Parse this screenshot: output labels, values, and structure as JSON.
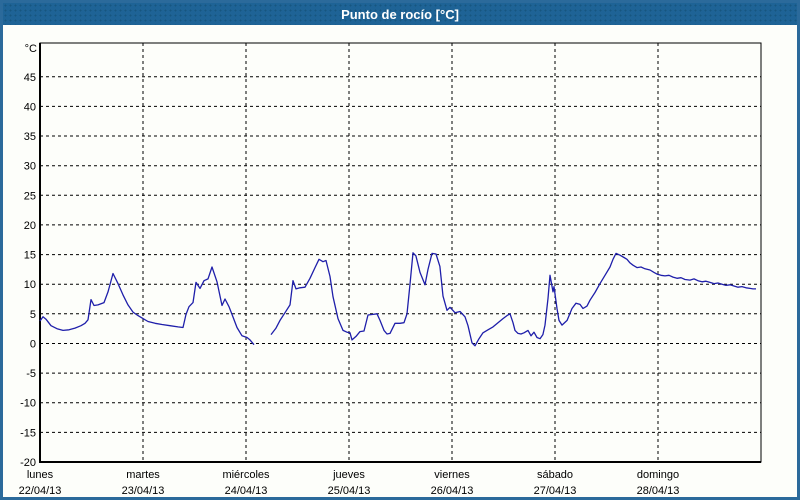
{
  "window": {
    "title": "Punto de rocío [°C]"
  },
  "colors": {
    "titlebar_bg": "#1E6396",
    "frame_border": "#2B6A9B",
    "panel_bg": "#FDFEFA",
    "series_line": "#1F1FAA",
    "grid": "#000000",
    "title_text": "#FFFFFF"
  },
  "chart_data": {
    "type": "line",
    "title": "Punto de rocío [°C]",
    "y_axis": {
      "unit_label": "°C",
      "min": -20,
      "max": 50.7,
      "tick_step": 5,
      "dashed_ticks": [
        45,
        40,
        35,
        30,
        25,
        20,
        15,
        10,
        5,
        0,
        -5,
        -10,
        -15
      ],
      "axis_tick": -20
    },
    "x_axis": {
      "days": [
        {
          "name": "lunes",
          "date": "22/04/13"
        },
        {
          "name": "martes",
          "date": "23/04/13"
        },
        {
          "name": "miércoles",
          "date": "24/04/13"
        },
        {
          "name": "jueves",
          "date": "25/04/13"
        },
        {
          "name": "viernes",
          "date": "26/04/13"
        },
        {
          "name": "sábado",
          "date": "27/04/13"
        },
        {
          "name": "domingo",
          "date": "28/04/13"
        }
      ]
    },
    "grid": "dashed",
    "legend": "none",
    "series": [
      {
        "name": "Punto de rocío",
        "color": "#1F1FAA",
        "unit": "°C",
        "note": "t in days from 22/04/13 00:00; gap in data early on 24/04",
        "segments": [
          [
            [
              0.0,
              3.8
            ],
            [
              0.029,
              4.5
            ],
            [
              0.058,
              4.1
            ],
            [
              0.107,
              3.0
            ],
            [
              0.165,
              2.5
            ],
            [
              0.223,
              2.2
            ],
            [
              0.282,
              2.3
            ],
            [
              0.34,
              2.6
            ],
            [
              0.398,
              3.0
            ],
            [
              0.437,
              3.4
            ],
            [
              0.466,
              4.0
            ],
            [
              0.495,
              7.4
            ],
            [
              0.524,
              6.4
            ],
            [
              0.563,
              6.5
            ],
            [
              0.621,
              6.9
            ],
            [
              0.66,
              8.7
            ],
            [
              0.709,
              11.8
            ],
            [
              0.757,
              10.1
            ],
            [
              0.806,
              8.2
            ],
            [
              0.854,
              6.5
            ],
            [
              0.903,
              5.3
            ],
            [
              0.951,
              4.7
            ],
            [
              1.0,
              4.2
            ],
            [
              1.049,
              3.7
            ],
            [
              1.117,
              3.4
            ],
            [
              1.184,
              3.2
            ],
            [
              1.262,
              3.0
            ],
            [
              1.34,
              2.8
            ],
            [
              1.388,
              2.7
            ],
            [
              1.417,
              4.9
            ],
            [
              1.447,
              6.2
            ],
            [
              1.485,
              6.9
            ],
            [
              1.515,
              10.3
            ],
            [
              1.553,
              9.3
            ],
            [
              1.592,
              10.6
            ],
            [
              1.631,
              10.9
            ],
            [
              1.67,
              12.9
            ],
            [
              1.718,
              10.4
            ],
            [
              1.767,
              6.4
            ],
            [
              1.796,
              7.5
            ],
            [
              1.835,
              6.2
            ],
            [
              1.864,
              4.9
            ],
            [
              1.913,
              2.7
            ],
            [
              1.961,
              1.3
            ],
            [
              2.01,
              1.0
            ],
            [
              2.039,
              0.6
            ],
            [
              2.078,
              -0.2
            ]
          ],
          [
            [
              2.243,
              1.5
            ],
            [
              2.291,
              2.6
            ],
            [
              2.33,
              3.9
            ],
            [
              2.379,
              5.2
            ],
            [
              2.427,
              6.5
            ],
            [
              2.456,
              10.6
            ],
            [
              2.485,
              9.2
            ],
            [
              2.524,
              9.4
            ],
            [
              2.573,
              9.5
            ],
            [
              2.621,
              11.0
            ],
            [
              2.67,
              12.8
            ],
            [
              2.709,
              14.2
            ],
            [
              2.748,
              13.8
            ],
            [
              2.777,
              14.0
            ],
            [
              2.816,
              11.3
            ],
            [
              2.845,
              7.9
            ],
            [
              2.893,
              4.2
            ],
            [
              2.942,
              2.2
            ],
            [
              2.981,
              1.9
            ],
            [
              3.01,
              1.8
            ],
            [
              3.029,
              0.6
            ],
            [
              3.068,
              1.2
            ],
            [
              3.107,
              2.0
            ],
            [
              3.146,
              2.1
            ],
            [
              3.184,
              4.8
            ],
            [
              3.233,
              4.9
            ],
            [
              3.272,
              5.0
            ],
            [
              3.301,
              3.9
            ],
            [
              3.34,
              2.2
            ],
            [
              3.369,
              1.6
            ],
            [
              3.398,
              1.7
            ],
            [
              3.447,
              3.4
            ],
            [
              3.495,
              3.4
            ],
            [
              3.534,
              3.5
            ],
            [
              3.563,
              5.0
            ],
            [
              3.592,
              10.0
            ],
            [
              3.621,
              15.3
            ],
            [
              3.65,
              14.8
            ],
            [
              3.689,
              12.0
            ],
            [
              3.738,
              9.9
            ],
            [
              3.767,
              12.5
            ],
            [
              3.806,
              15.2
            ],
            [
              3.845,
              15.1
            ],
            [
              3.883,
              13.0
            ],
            [
              3.913,
              8.0
            ],
            [
              3.951,
              5.6
            ],
            [
              3.981,
              6.1
            ],
            [
              4.029,
              5.2
            ],
            [
              4.078,
              5.4
            ],
            [
              4.126,
              4.5
            ],
            [
              4.155,
              3.0
            ],
            [
              4.194,
              0.1
            ],
            [
              4.223,
              -0.4
            ],
            [
              4.262,
              0.8
            ],
            [
              4.301,
              1.8
            ],
            [
              4.35,
              2.3
            ],
            [
              4.398,
              2.8
            ],
            [
              4.447,
              3.5
            ],
            [
              4.495,
              4.2
            ],
            [
              4.534,
              4.7
            ],
            [
              4.563,
              5.0
            ],
            [
              4.592,
              3.5
            ],
            [
              4.612,
              2.2
            ],
            [
              4.641,
              1.7
            ],
            [
              4.67,
              1.6
            ],
            [
              4.699,
              1.8
            ],
            [
              4.738,
              2.2
            ],
            [
              4.767,
              1.3
            ],
            [
              4.796,
              1.9
            ],
            [
              4.825,
              1.0
            ],
            [
              4.854,
              0.8
            ],
            [
              4.883,
              1.5
            ],
            [
              4.903,
              3.1
            ],
            [
              4.932,
              7.6
            ],
            [
              4.951,
              11.5
            ],
            [
              4.981,
              8.7
            ],
            [
              4.99,
              9.6
            ],
            [
              5.019,
              5.9
            ],
            [
              5.039,
              3.9
            ],
            [
              5.068,
              3.1
            ],
            [
              5.117,
              3.9
            ],
            [
              5.165,
              5.9
            ],
            [
              5.204,
              6.8
            ],
            [
              5.243,
              6.6
            ],
            [
              5.272,
              5.9
            ],
            [
              5.311,
              6.3
            ],
            [
              5.34,
              7.3
            ],
            [
              5.388,
              8.6
            ],
            [
              5.437,
              10.1
            ],
            [
              5.485,
              11.5
            ],
            [
              5.534,
              12.9
            ],
            [
              5.563,
              14.2
            ],
            [
              5.592,
              15.2
            ],
            [
              5.631,
              14.9
            ],
            [
              5.67,
              14.5
            ],
            [
              5.699,
              14.2
            ],
            [
              5.728,
              13.6
            ],
            [
              5.757,
              13.2
            ],
            [
              5.796,
              12.8
            ],
            [
              5.835,
              12.9
            ],
            [
              5.874,
              12.6
            ],
            [
              5.922,
              12.4
            ],
            [
              5.961,
              12.0
            ],
            [
              5.99,
              11.7
            ],
            [
              6.029,
              11.5
            ],
            [
              6.068,
              11.4
            ],
            [
              6.107,
              11.5
            ],
            [
              6.146,
              11.2
            ],
            [
              6.184,
              11.0
            ],
            [
              6.223,
              11.1
            ],
            [
              6.262,
              10.8
            ],
            [
              6.311,
              10.7
            ],
            [
              6.35,
              10.9
            ],
            [
              6.388,
              10.6
            ],
            [
              6.427,
              10.4
            ],
            [
              6.466,
              10.5
            ],
            [
              6.505,
              10.3
            ],
            [
              6.544,
              10.1
            ],
            [
              6.583,
              10.2
            ],
            [
              6.621,
              10.0
            ],
            [
              6.66,
              9.8
            ],
            [
              6.699,
              9.9
            ],
            [
              6.738,
              9.7
            ],
            [
              6.777,
              9.5
            ],
            [
              6.816,
              9.6
            ],
            [
              6.854,
              9.4
            ],
            [
              6.893,
              9.3
            ],
            [
              6.922,
              9.2
            ],
            [
              6.951,
              9.2
            ]
          ]
        ]
      }
    ]
  }
}
